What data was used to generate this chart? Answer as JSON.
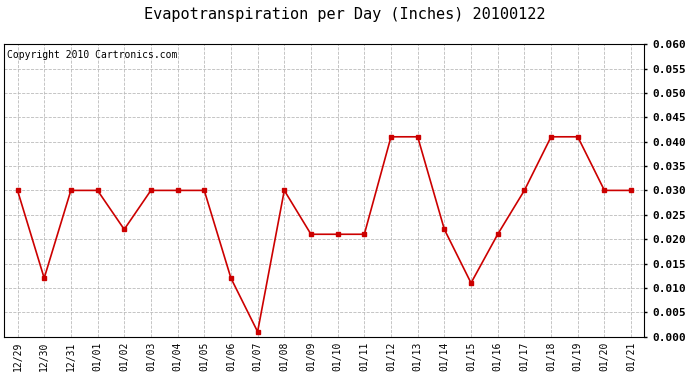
{
  "title": "Evapotranspiration per Day (Inches) 20100122",
  "copyright_text": "Copyright 2010 Cartronics.com",
  "x_labels": [
    "12/29",
    "12/30",
    "12/31",
    "01/01",
    "01/02",
    "01/03",
    "01/04",
    "01/05",
    "01/06",
    "01/07",
    "01/08",
    "01/09",
    "01/10",
    "01/11",
    "01/12",
    "01/13",
    "01/14",
    "01/15",
    "01/16",
    "01/17",
    "01/18",
    "01/19",
    "01/20",
    "01/21"
  ],
  "y_values": [
    0.03,
    0.012,
    0.03,
    0.03,
    0.022,
    0.03,
    0.03,
    0.03,
    0.012,
    0.001,
    0.03,
    0.021,
    0.021,
    0.021,
    0.041,
    0.041,
    0.022,
    0.011,
    0.021,
    0.03,
    0.041,
    0.041,
    0.03,
    0.03
  ],
  "line_color": "#cc0000",
  "marker": "s",
  "marker_size": 3,
  "background_color": "#ffffff",
  "grid_color": "#bbbbbb",
  "y_min": 0.0,
  "y_max": 0.06,
  "y_tick_step": 0.005,
  "title_fontsize": 11,
  "copyright_fontsize": 7,
  "x_tick_fontsize": 7,
  "y_tick_fontsize": 8
}
